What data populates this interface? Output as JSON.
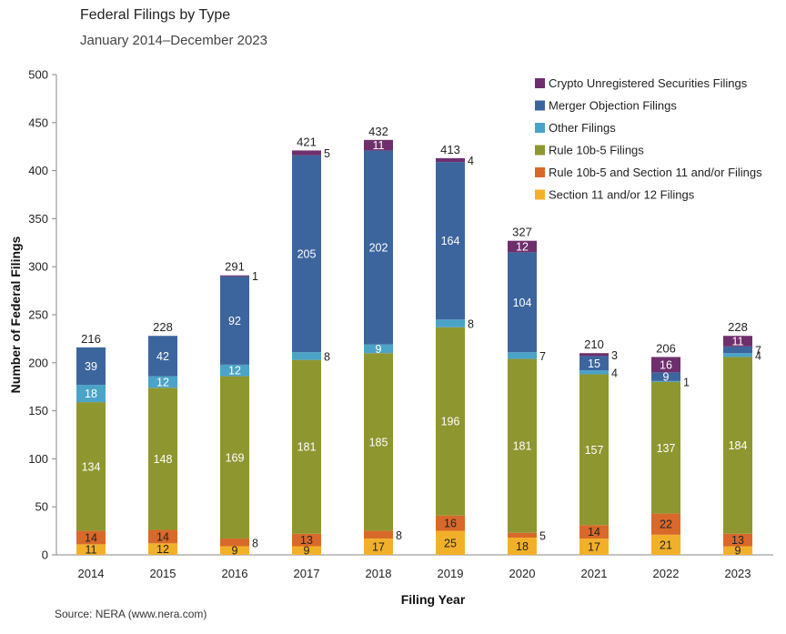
{
  "title": "Federal Filings by Type",
  "subtitle": "January 2014–December 2023",
  "source": "Source: NERA (www.nera.com)",
  "chart_data": {
    "type": "bar",
    "stacked": true,
    "title": "Federal Filings by Type",
    "subtitle": "January 2014–December 2023",
    "xlabel": "Filing Year",
    "ylabel": "Number of Federal Filings",
    "ylim": [
      0,
      500
    ],
    "yticks": [
      0,
      50,
      100,
      150,
      200,
      250,
      300,
      350,
      400,
      450,
      500
    ],
    "grid": false,
    "legend_position": "top-right",
    "categories": [
      "2014",
      "2015",
      "2016",
      "2017",
      "2018",
      "2019",
      "2020",
      "2021",
      "2022",
      "2023"
    ],
    "totals": [
      216,
      228,
      291,
      421,
      432,
      413,
      327,
      210,
      206,
      228
    ],
    "series": [
      {
        "name": "Section 11 and/or 12 Filings",
        "color": "#f2b02a",
        "text_color": "#222222",
        "values": [
          11,
          12,
          9,
          9,
          17,
          25,
          18,
          17,
          21,
          9
        ]
      },
      {
        "name": "Rule 10b-5 and Section 11 and/or Filings",
        "color": "#d8692a",
        "text_color": "#222222",
        "values": [
          14,
          14,
          8,
          13,
          8,
          16,
          5,
          14,
          22,
          13
        ]
      },
      {
        "name": "Rule 10b-5 Filings",
        "color": "#8e9630",
        "text_color": "#ffffff",
        "values": [
          134,
          148,
          169,
          181,
          185,
          196,
          181,
          157,
          137,
          184
        ]
      },
      {
        "name": "Other Filings",
        "color": "#4ba3c7",
        "text_color": "#ffffff",
        "values": [
          18,
          12,
          12,
          8,
          9,
          8,
          7,
          4,
          1,
          4
        ]
      },
      {
        "name": "Merger Objection Filings",
        "color": "#3d659d",
        "text_color": "#ffffff",
        "values": [
          39,
          42,
          92,
          205,
          202,
          164,
          104,
          15,
          9,
          7
        ]
      },
      {
        "name": "Crypto Unregistered Securities Filings",
        "color": "#6e2f6c",
        "text_color": "#ffffff",
        "values": [
          0,
          0,
          1,
          5,
          11,
          4,
          12,
          3,
          16,
          11
        ]
      }
    ],
    "legend_order": [
      "Crypto Unregistered Securities Filings",
      "Merger Objection Filings",
      "Other Filings",
      "Rule 10b-5 Filings",
      "Rule 10b-5 and Section 11 and/or Filings",
      "Section 11 and/or 12 Filings"
    ]
  }
}
